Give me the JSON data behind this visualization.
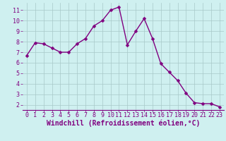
{
  "x": [
    0,
    1,
    2,
    3,
    4,
    5,
    6,
    7,
    8,
    9,
    10,
    11,
    12,
    13,
    14,
    15,
    16,
    17,
    18,
    19,
    20,
    21,
    22,
    23
  ],
  "y": [
    6.7,
    7.9,
    7.8,
    7.4,
    7.0,
    7.0,
    7.8,
    8.3,
    9.5,
    10.0,
    11.0,
    11.3,
    7.7,
    9.0,
    10.2,
    8.3,
    5.9,
    5.1,
    4.3,
    3.1,
    2.2,
    2.1,
    2.1,
    1.8
  ],
  "line_color": "#800080",
  "marker": "D",
  "marker_size": 2.5,
  "linewidth": 1.0,
  "bg_color": "#cff0f0",
  "grid_color": "#a8c8c8",
  "xlabel": "Windchill (Refroidissement éolien,°C)",
  "yticks": [
    2,
    3,
    4,
    5,
    6,
    7,
    8,
    9,
    10,
    11
  ],
  "xlim": [
    -0.5,
    23.5
  ],
  "ylim": [
    1.5,
    11.7
  ],
  "xticks": [
    0,
    1,
    2,
    3,
    4,
    5,
    6,
    7,
    8,
    9,
    10,
    11,
    12,
    13,
    14,
    15,
    16,
    17,
    18,
    19,
    20,
    21,
    22,
    23
  ],
  "tick_fontsize": 6.0,
  "xlabel_fontsize": 7.0,
  "tick_color": "#800080",
  "axis_color": "#800080",
  "spine_color": "#800080",
  "spine_bottom_color": "#800080"
}
